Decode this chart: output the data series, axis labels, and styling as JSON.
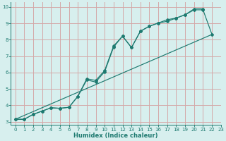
{
  "xlabel": "Humidex (Indice chaleur)",
  "xlim": [
    -0.5,
    23
  ],
  "ylim": [
    2.8,
    10.3
  ],
  "xticks": [
    0,
    1,
    2,
    3,
    4,
    5,
    6,
    7,
    8,
    9,
    10,
    11,
    12,
    13,
    14,
    15,
    16,
    17,
    18,
    19,
    20,
    21,
    22,
    23
  ],
  "yticks": [
    3,
    4,
    5,
    6,
    7,
    8,
    9,
    10
  ],
  "bg_color": "#d7efee",
  "grid_color": "#d4a8a8",
  "line_color": "#1e7a70",
  "line1_x": [
    0,
    1,
    2,
    3,
    4,
    5,
    6,
    7,
    8,
    9,
    10,
    11,
    12,
    13,
    14,
    15,
    16,
    17,
    18,
    19,
    20,
    21,
    22
  ],
  "line1_y": [
    3.15,
    3.15,
    3.45,
    3.65,
    3.85,
    3.82,
    3.88,
    4.55,
    5.55,
    5.42,
    6.05,
    7.55,
    8.22,
    7.52,
    8.52,
    8.82,
    9.02,
    9.12,
    9.32,
    9.52,
    9.82,
    9.82,
    8.32
  ],
  "line2_x": [
    0,
    1,
    2,
    3,
    4,
    5,
    6,
    7,
    8,
    9,
    10,
    11,
    12,
    13,
    14,
    15,
    16,
    17,
    18,
    19,
    20,
    21
  ],
  "line2_y": [
    3.15,
    3.15,
    3.45,
    3.65,
    3.85,
    3.82,
    3.88,
    4.55,
    5.62,
    5.52,
    6.12,
    7.62,
    8.22,
    7.52,
    8.52,
    8.82,
    9.02,
    9.22,
    9.32,
    9.52,
    9.88,
    9.88
  ],
  "line3_x": [
    0,
    22
  ],
  "line3_y": [
    3.15,
    8.32
  ]
}
